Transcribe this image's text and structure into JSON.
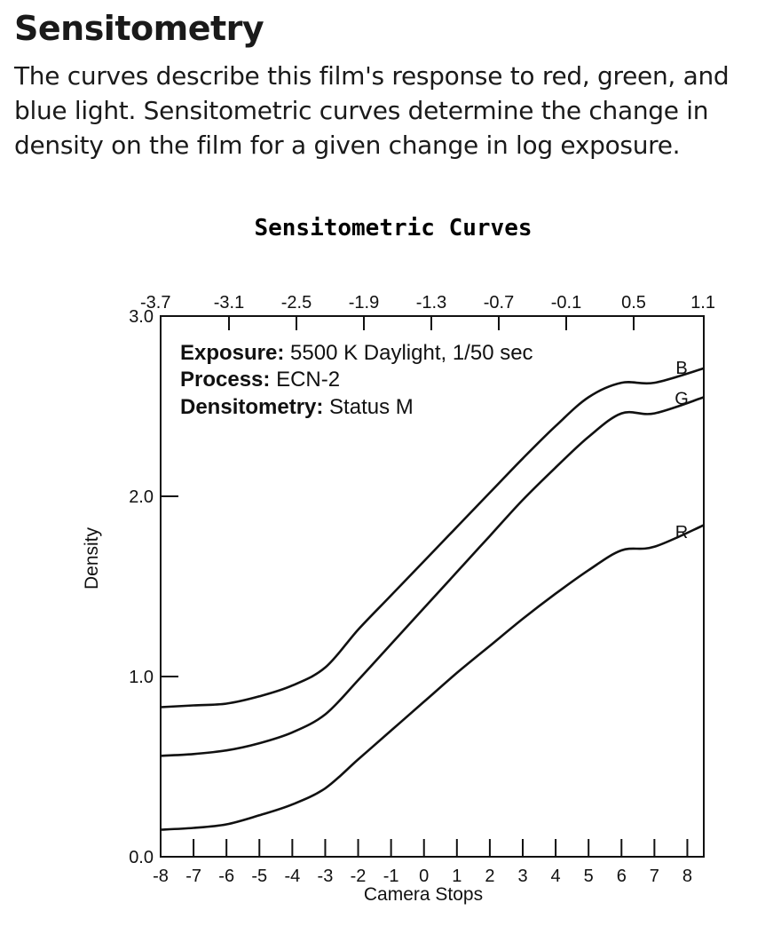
{
  "header": {
    "title": "Sensitometry",
    "description": "The curves describe this film's response to red, green, and blue light. Sensitometric curves determine the change in density on the film for a given change in log exposure."
  },
  "chart_data": {
    "type": "line",
    "title": "Sensitometric Curves",
    "xlabel": "Camera Stops",
    "ylabel": "Density",
    "xlim": [
      -8,
      8.5
    ],
    "ylim": [
      0,
      3.0
    ],
    "x_ticks": [
      "-8",
      "-7",
      "-6",
      "-5",
      "-4",
      "-3",
      "-2",
      "-1",
      "0",
      "1",
      "2",
      "3",
      "4",
      "5",
      "6",
      "7",
      "8"
    ],
    "top_axis_ticks": [
      "-3.7",
      "-3.1",
      "-2.5",
      "-1.9",
      "-1.3",
      "-0.7",
      "-0.1",
      "0.5",
      "1.1"
    ],
    "y_ticks": [
      "0.0",
      "1.0",
      "2.0",
      "3.0"
    ],
    "grid": false,
    "annotations": [
      {
        "label": "Exposure:",
        "value": "5500 K Daylight, 1/50 sec"
      },
      {
        "label": "Process:",
        "value": "ECN-2"
      },
      {
        "label": "Densitometry:",
        "value": "Status M"
      }
    ],
    "series": [
      {
        "name": "B",
        "x": [
          -8,
          -7,
          -6,
          -5,
          -4,
          -3,
          -2,
          -1,
          0,
          1,
          2,
          3,
          4,
          5,
          6,
          7,
          8.5
        ],
        "values": [
          0.83,
          0.84,
          0.85,
          0.89,
          0.95,
          1.05,
          1.26,
          1.45,
          1.64,
          1.83,
          2.02,
          2.21,
          2.39,
          2.55,
          2.63,
          2.63,
          2.71
        ]
      },
      {
        "name": "G",
        "x": [
          -8,
          -7,
          -6,
          -5,
          -4,
          -3,
          -2,
          -1,
          0,
          1,
          2,
          3,
          4,
          5,
          6,
          7,
          8.5
        ],
        "values": [
          0.56,
          0.57,
          0.59,
          0.63,
          0.69,
          0.79,
          0.98,
          1.18,
          1.38,
          1.58,
          1.78,
          1.98,
          2.16,
          2.33,
          2.46,
          2.46,
          2.55
        ]
      },
      {
        "name": "R",
        "x": [
          -8,
          -7,
          -6,
          -5,
          -4,
          -3,
          -2,
          -1,
          0,
          1,
          2,
          3,
          4,
          5,
          6,
          7,
          8.5
        ],
        "values": [
          0.15,
          0.16,
          0.18,
          0.23,
          0.29,
          0.38,
          0.54,
          0.7,
          0.86,
          1.02,
          1.17,
          1.32,
          1.46,
          1.59,
          1.7,
          1.72,
          1.84
        ]
      }
    ]
  }
}
